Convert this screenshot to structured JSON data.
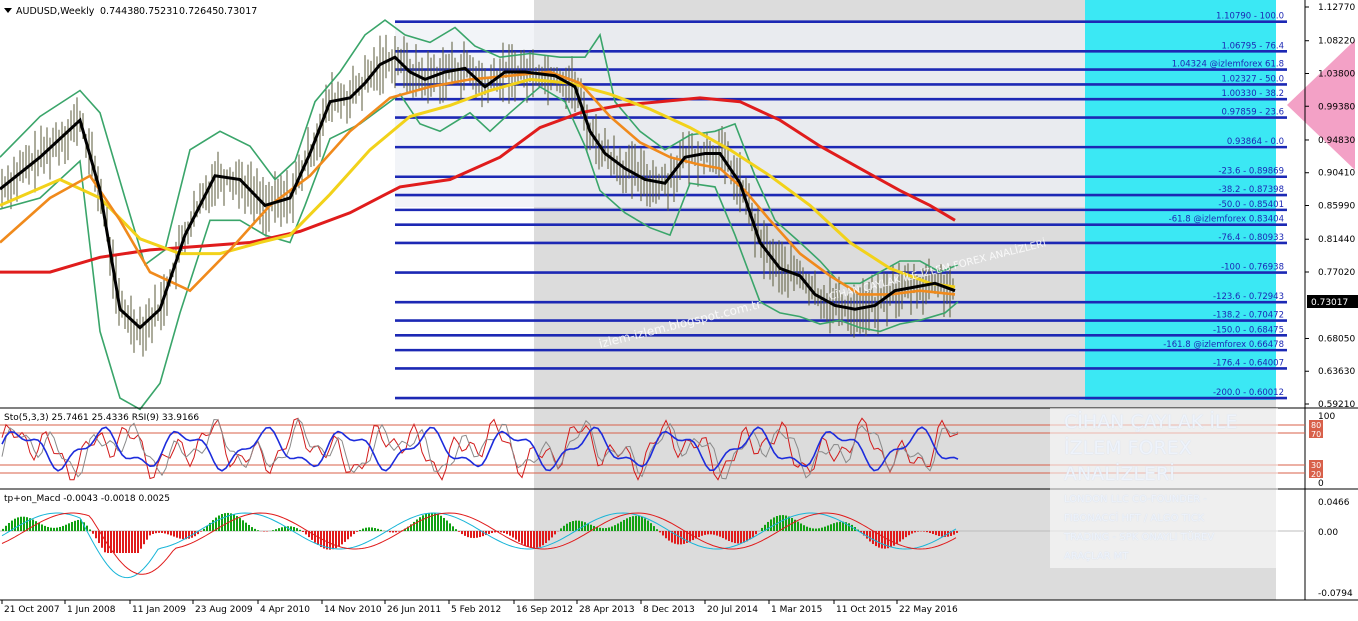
{
  "chart_data": {
    "type": "line",
    "title": "AUDUSD,Weekly",
    "ohlc": {
      "open": "0.74438",
      "high": "0.75231",
      "low": "0.72645",
      "close": "0.73017"
    },
    "current_price": 0.73017,
    "current_price_label": "0.73017",
    "price_axis_ticks": [
      {
        "label": "1.12770",
        "v": 1.1277
      },
      {
        "label": "1.08220",
        "v": 1.0822
      },
      {
        "label": "1.03800",
        "v": 1.038
      },
      {
        "label": "0.99380",
        "v": 0.9938
      },
      {
        "label": "0.94830",
        "v": 0.9483
      },
      {
        "label": "0.90410",
        "v": 0.9041
      },
      {
        "label": "0.85990",
        "v": 0.8599
      },
      {
        "label": "0.81440",
        "v": 0.8144
      },
      {
        "label": "0.77020",
        "v": 0.7702
      },
      {
        "label": "0.68050",
        "v": 0.6805
      },
      {
        "label": "0.63630",
        "v": 0.6363
      },
      {
        "label": "0.59210",
        "v": 0.5921
      }
    ],
    "time_axis_labels": [
      "21 Oct 2007",
      "1 Jun 2008",
      "11 Jan 2009",
      "23 Aug 2009",
      "4 Apr 2010",
      "14 Nov 2010",
      "26 Jun 2011",
      "5 Feb 2012",
      "16 Sep 2012",
      "28 Apr 2013",
      "8 Dec 2013",
      "20 Jul 2014",
      "1 Mar 2015",
      "11 Oct 2015",
      "22 May 2016"
    ],
    "fib_levels": [
      {
        "label": "1.10790 - 100.0",
        "v": 1.1079
      },
      {
        "label": "1.06795 - 76.4",
        "v": 1.06795
      },
      {
        "label": "1.04324 @izlemforex 61.8",
        "v": 1.04324
      },
      {
        "label": "1.02327 - 50.0",
        "v": 1.02327
      },
      {
        "label": "1.00330 - 38.2",
        "v": 1.0033
      },
      {
        "label": "0.97859 - 23.6",
        "v": 0.97859
      },
      {
        "label": "0.93864 - 0.0",
        "v": 0.93864
      },
      {
        "label": "-23.6 - 0.89869",
        "v": 0.89869
      },
      {
        "label": "-38.2 - 0.87398",
        "v": 0.87398
      },
      {
        "label": "-50.0 - 0.85401",
        "v": 0.85401
      },
      {
        "label": "-61.8 @izlemforex 0.83404",
        "v": 0.83404
      },
      {
        "label": "-76.4 - 0.80933",
        "v": 0.80933
      },
      {
        "label": "-100 - 0.76938",
        "v": 0.76938
      },
      {
        "label": "-123.6 - 0.72943",
        "v": 0.72943
      },
      {
        "label": "-138.2 - 0.70472",
        "v": 0.70472
      },
      {
        "label": "-150.0 - 0.68475",
        "v": 0.68475
      },
      {
        "label": "-161.8 @izlemforex 0.66478",
        "v": 0.66478
      },
      {
        "label": "-176.4 - 0.64007",
        "v": 0.64007
      },
      {
        "label": "-200.0 - 0.60012",
        "v": 0.60012
      }
    ],
    "ema_black": [
      [
        0,
        0.882
      ],
      [
        40,
        0.925
      ],
      [
        80,
        0.975
      ],
      [
        100,
        0.88
      ],
      [
        120,
        0.72
      ],
      [
        140,
        0.695
      ],
      [
        160,
        0.72
      ],
      [
        185,
        0.82
      ],
      [
        215,
        0.9
      ],
      [
        240,
        0.895
      ],
      [
        265,
        0.86
      ],
      [
        290,
        0.87
      ],
      [
        310,
        0.93
      ],
      [
        330,
        1.0
      ],
      [
        350,
        1.005
      ],
      [
        365,
        1.025
      ],
      [
        380,
        1.05
      ],
      [
        395,
        1.06
      ],
      [
        410,
        1.04
      ],
      [
        425,
        1.03
      ],
      [
        445,
        1.04
      ],
      [
        465,
        1.045
      ],
      [
        485,
        1.02
      ],
      [
        505,
        1.04
      ],
      [
        525,
        1.04
      ],
      [
        555,
        1.035
      ],
      [
        575,
        1.02
      ],
      [
        590,
        0.96
      ],
      [
        605,
        0.93
      ],
      [
        625,
        0.91
      ],
      [
        645,
        0.895
      ],
      [
        665,
        0.89
      ],
      [
        685,
        0.925
      ],
      [
        705,
        0.93
      ],
      [
        720,
        0.93
      ],
      [
        740,
        0.89
      ],
      [
        760,
        0.81
      ],
      [
        780,
        0.775
      ],
      [
        800,
        0.765
      ],
      [
        815,
        0.74
      ],
      [
        835,
        0.725
      ],
      [
        855,
        0.72
      ],
      [
        875,
        0.725
      ],
      [
        895,
        0.745
      ],
      [
        915,
        0.75
      ],
      [
        935,
        0.755
      ],
      [
        955,
        0.745
      ]
    ],
    "ema_orange": [
      [
        0,
        0.81
      ],
      [
        50,
        0.87
      ],
      [
        90,
        0.9
      ],
      [
        120,
        0.84
      ],
      [
        150,
        0.77
      ],
      [
        190,
        0.745
      ],
      [
        230,
        0.8
      ],
      [
        270,
        0.86
      ],
      [
        310,
        0.9
      ],
      [
        350,
        0.96
      ],
      [
        390,
        1.005
      ],
      [
        430,
        1.02
      ],
      [
        470,
        1.03
      ],
      [
        510,
        1.035
      ],
      [
        550,
        1.04
      ],
      [
        580,
        1.025
      ],
      [
        610,
        0.98
      ],
      [
        640,
        0.945
      ],
      [
        670,
        0.925
      ],
      [
        700,
        0.915
      ],
      [
        720,
        0.91
      ],
      [
        745,
        0.88
      ],
      [
        770,
        0.84
      ],
      [
        800,
        0.795
      ],
      [
        830,
        0.765
      ],
      [
        860,
        0.74
      ],
      [
        890,
        0.74
      ],
      [
        920,
        0.745
      ],
      [
        955,
        0.74
      ]
    ],
    "ema_yellow": [
      [
        0,
        0.86
      ],
      [
        60,
        0.895
      ],
      [
        100,
        0.87
      ],
      [
        140,
        0.815
      ],
      [
        180,
        0.795
      ],
      [
        220,
        0.795
      ],
      [
        260,
        0.81
      ],
      [
        290,
        0.82
      ],
      [
        330,
        0.875
      ],
      [
        370,
        0.935
      ],
      [
        410,
        0.98
      ],
      [
        450,
        0.995
      ],
      [
        490,
        1.015
      ],
      [
        530,
        1.03
      ],
      [
        570,
        1.025
      ],
      [
        610,
        1.01
      ],
      [
        650,
        0.99
      ],
      [
        690,
        0.965
      ],
      [
        730,
        0.935
      ],
      [
        770,
        0.9
      ],
      [
        810,
        0.86
      ],
      [
        850,
        0.81
      ],
      [
        890,
        0.775
      ],
      [
        930,
        0.755
      ],
      [
        955,
        0.75
      ]
    ],
    "ema_red": [
      [
        0,
        0.77
      ],
      [
        50,
        0.77
      ],
      [
        100,
        0.79
      ],
      [
        150,
        0.8
      ],
      [
        200,
        0.805
      ],
      [
        250,
        0.81
      ],
      [
        300,
        0.825
      ],
      [
        350,
        0.85
      ],
      [
        400,
        0.885
      ],
      [
        450,
        0.895
      ],
      [
        500,
        0.925
      ],
      [
        540,
        0.965
      ],
      [
        580,
        0.985
      ],
      [
        620,
        0.995
      ],
      [
        660,
        1.0
      ],
      [
        700,
        1.005
      ],
      [
        740,
        1.0
      ],
      [
        780,
        0.975
      ],
      [
        820,
        0.94
      ],
      [
        860,
        0.91
      ],
      [
        900,
        0.88
      ],
      [
        930,
        0.86
      ],
      [
        955,
        0.84
      ]
    ],
    "bb_upper": [
      [
        0,
        0.925
      ],
      [
        40,
        0.98
      ],
      [
        80,
        1.015
      ],
      [
        100,
        0.985
      ],
      [
        125,
        0.87
      ],
      [
        145,
        0.78
      ],
      [
        165,
        0.8
      ],
      [
        190,
        0.935
      ],
      [
        220,
        0.96
      ],
      [
        250,
        0.94
      ],
      [
        275,
        0.895
      ],
      [
        295,
        0.92
      ],
      [
        315,
        1.0
      ],
      [
        340,
        1.04
      ],
      [
        365,
        1.09
      ],
      [
        385,
        1.11
      ],
      [
        405,
        1.09
      ],
      [
        430,
        1.08
      ],
      [
        455,
        1.1
      ],
      [
        475,
        1.075
      ],
      [
        500,
        1.06
      ],
      [
        530,
        1.065
      ],
      [
        560,
        1.06
      ],
      [
        585,
        1.06
      ],
      [
        600,
        1.09
      ],
      [
        615,
        1.0
      ],
      [
        640,
        0.96
      ],
      [
        665,
        0.935
      ],
      [
        690,
        0.955
      ],
      [
        715,
        0.96
      ],
      [
        735,
        0.97
      ],
      [
        755,
        0.9
      ],
      [
        775,
        0.84
      ],
      [
        800,
        0.81
      ],
      [
        820,
        0.785
      ],
      [
        840,
        0.755
      ],
      [
        860,
        0.755
      ],
      [
        880,
        0.77
      ],
      [
        900,
        0.785
      ],
      [
        920,
        0.785
      ],
      [
        940,
        0.77
      ],
      [
        958,
        0.78
      ]
    ],
    "bb_lower": [
      [
        0,
        0.855
      ],
      [
        40,
        0.87
      ],
      [
        80,
        0.92
      ],
      [
        100,
        0.69
      ],
      [
        120,
        0.6
      ],
      [
        140,
        0.585
      ],
      [
        160,
        0.62
      ],
      [
        180,
        0.715
      ],
      [
        210,
        0.84
      ],
      [
        240,
        0.84
      ],
      [
        265,
        0.82
      ],
      [
        290,
        0.81
      ],
      [
        305,
        0.86
      ],
      [
        330,
        0.95
      ],
      [
        360,
        0.97
      ],
      [
        380,
        0.99
      ],
      [
        400,
        1.01
      ],
      [
        420,
        0.97
      ],
      [
        440,
        0.96
      ],
      [
        470,
        0.985
      ],
      [
        490,
        0.96
      ],
      [
        510,
        0.985
      ],
      [
        540,
        1.02
      ],
      [
        565,
        1.0
      ],
      [
        585,
        0.94
      ],
      [
        600,
        0.88
      ],
      [
        625,
        0.85
      ],
      [
        650,
        0.83
      ],
      [
        670,
        0.82
      ],
      [
        690,
        0.89
      ],
      [
        715,
        0.885
      ],
      [
        735,
        0.82
      ],
      [
        760,
        0.73
      ],
      [
        780,
        0.715
      ],
      [
        800,
        0.71
      ],
      [
        820,
        0.7
      ],
      [
        840,
        0.705
      ],
      [
        860,
        0.695
      ],
      [
        880,
        0.69
      ],
      [
        900,
        0.7
      ],
      [
        920,
        0.705
      ],
      [
        945,
        0.715
      ],
      [
        958,
        0.73
      ]
    ],
    "stoch_rsi": {
      "label": "Sto(5,3,3) 25.7461 25.4336 RSI(9) 33.9166",
      "axis_labels": [
        "100",
        "80",
        "70",
        "30",
        "20",
        "0"
      ]
    },
    "macd": {
      "label": "tp+on_Macd -0.0043 -0.0018 0.0025",
      "axis_labels": [
        "0.0466",
        "0.00",
        "-0.0794"
      ]
    }
  },
  "watermark": {
    "title_lines": [
      "CİHAN ÇAYLAK İLE",
      "İZLEM FOREX",
      "ANALİZLERİ"
    ],
    "sub_lines": [
      "LONDON LLC CO-FOUNDER -",
      "FIBONACCİ HFT / ALGO TICK",
      "TRADING - SPK ONAYLI TÜREV",
      "ARAÇLAR MT"
    ],
    "diagonal": [
      "izlem-izlem.blogspot.com.tr",
      "CİHAN ÇAYLAK İLE İZLEM FOREX ANALİZLERİ"
    ]
  },
  "colors": {
    "fib_line": "#1c28b4",
    "ema_red": "#e01c1c",
    "ema_orange": "#f08a1c",
    "ema_yellow": "#f2d21a",
    "ema_black": "#000000",
    "bollinger": "#3aa56a",
    "cyan_panel": "#3be8f4",
    "pink_tag": "#f3a1c6",
    "gray_area": "#dcdcdc",
    "price_tag_bg": "#000000",
    "rsi_blue": "#1d2cdc",
    "stoch_red": "#d21b1b",
    "macd_green": "#11a112",
    "macd_red": "#e01b1b",
    "signal_cyan": "#18b5d8"
  }
}
